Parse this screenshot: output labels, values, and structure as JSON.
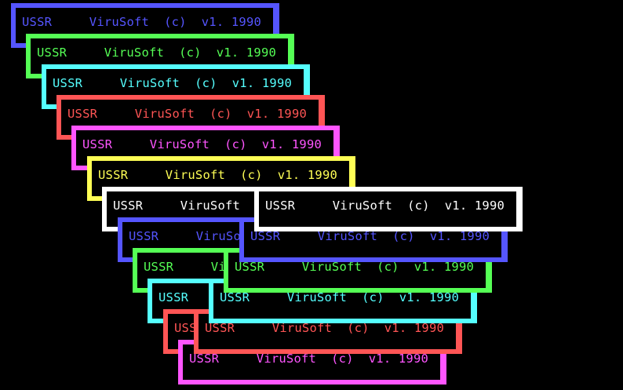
{
  "banner_text": "USSR     ViruSoft  (c)  v1. 1990",
  "colors": {
    "blue": "#5555ff",
    "green": "#55ff55",
    "cyan": "#55ffff",
    "red": "#ff5555",
    "magenta": "#ff55ff",
    "yellow": "#ffff55",
    "white": "#ffffff",
    "background": "#000000"
  },
  "windows": [
    {
      "color": "blue"
    },
    {
      "color": "green"
    },
    {
      "color": "cyan"
    },
    {
      "color": "red"
    },
    {
      "color": "magenta"
    },
    {
      "color": "yellow"
    },
    {
      "color": "white"
    },
    {
      "color": "blue"
    },
    {
      "color": "green"
    },
    {
      "color": "cyan"
    },
    {
      "color": "red"
    },
    {
      "color": "magenta"
    },
    {
      "color": "white"
    },
    {
      "color": "blue"
    },
    {
      "color": "green"
    },
    {
      "color": "cyan"
    },
    {
      "color": "red"
    },
    {
      "color": "magenta"
    }
  ]
}
